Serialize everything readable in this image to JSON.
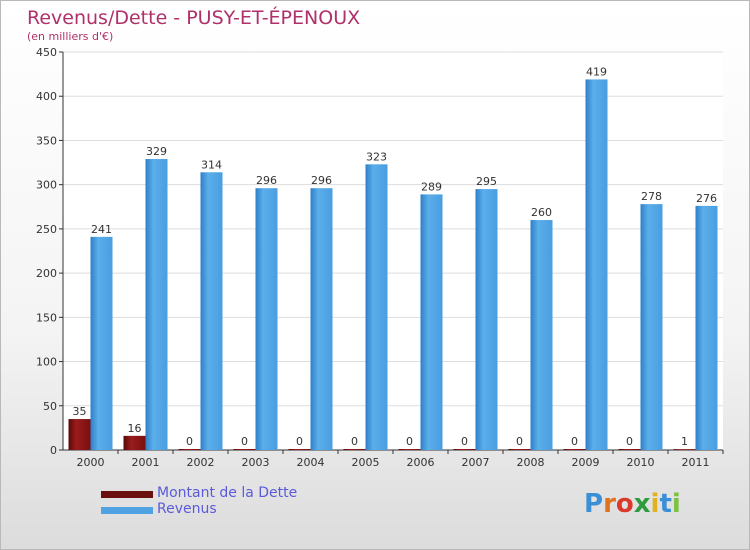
{
  "header": {
    "title": "Revenus/Dette - PUSY-ET-ÉPENOUX",
    "subtitle": "(en milliers d'€)"
  },
  "logo": {
    "text": "Proxiti"
  },
  "colors": {
    "debt": "#7a1010",
    "revenue": "#4fa3e3",
    "title": "#b0306a",
    "legend_text": "#5a5adb"
  },
  "legend": [
    {
      "label": "Montant de la Dette",
      "color": "#6b0f0f"
    },
    {
      "label": "Revenus",
      "color": "#4fa3e3"
    }
  ],
  "chart_data": {
    "type": "bar",
    "title": "Revenus/Dette - PUSY-ET-ÉPENOUX",
    "ylabel": "(en milliers d'€)",
    "xlabel": "",
    "categories": [
      "2000",
      "2001",
      "2002",
      "2003",
      "2004",
      "2005",
      "2006",
      "2007",
      "2008",
      "2009",
      "2010",
      "2011"
    ],
    "series": [
      {
        "name": "Montant de la Dette",
        "values": [
          35,
          16,
          0,
          0,
          0,
          0,
          0,
          0,
          0,
          0,
          0,
          1
        ]
      },
      {
        "name": "Revenus",
        "values": [
          241,
          329,
          314,
          296,
          296,
          323,
          289,
          295,
          260,
          419,
          278,
          276
        ]
      }
    ],
    "ylim": [
      0,
      450
    ],
    "yticks": [
      0,
      50,
      100,
      150,
      200,
      250,
      300,
      350,
      400,
      450
    ],
    "grid": true,
    "legend_position": "bottom-left"
  }
}
